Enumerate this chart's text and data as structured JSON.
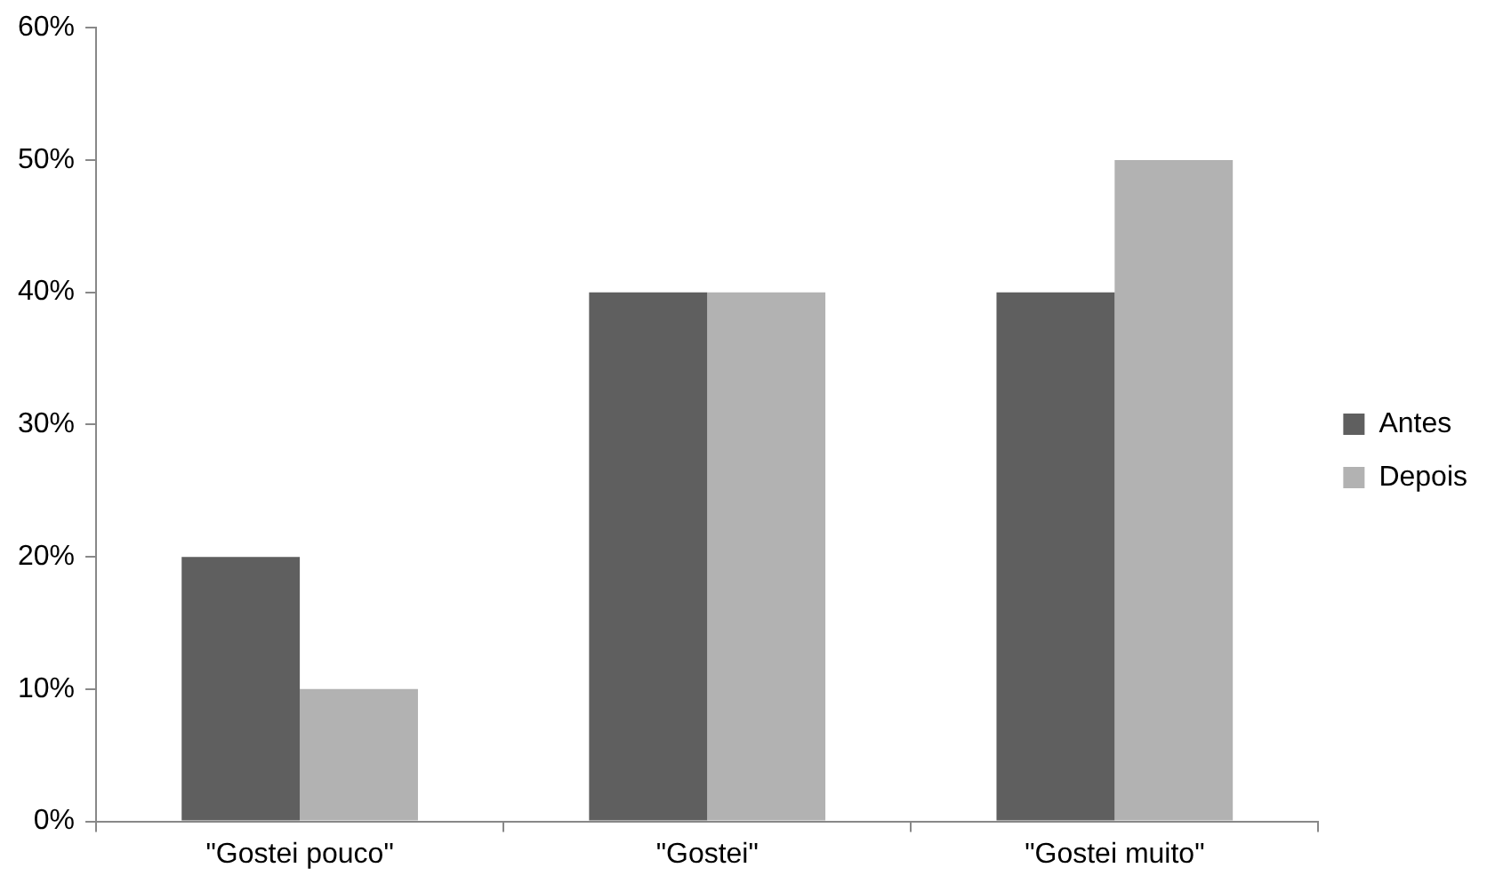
{
  "chart_data": {
    "type": "bar",
    "categories": [
      "\"Gostei pouco\"",
      "\"Gostei\"",
      "\"Gostei muito\""
    ],
    "series": [
      {
        "name": "Antes",
        "color": "#5f5f5f",
        "values": [
          20,
          40,
          40
        ]
      },
      {
        "name": "Depois",
        "color": "#b2b2b2",
        "values": [
          10,
          40,
          50
        ]
      }
    ],
    "ylim": [
      0,
      60
    ],
    "yticks": [
      {
        "value": 0,
        "label": "0%"
      },
      {
        "value": 10,
        "label": "10%"
      },
      {
        "value": 20,
        "label": "20%"
      },
      {
        "value": 30,
        "label": "30%"
      },
      {
        "value": 40,
        "label": "40%"
      },
      {
        "value": 50,
        "label": "50%"
      },
      {
        "value": 60,
        "label": "60%"
      }
    ],
    "grid": false,
    "legend": "right"
  }
}
